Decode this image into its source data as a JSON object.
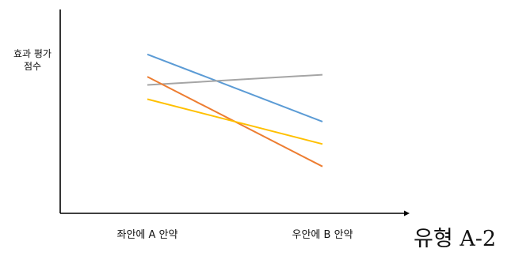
{
  "caption": "유형 A-2",
  "chart_data": {
    "type": "line",
    "ylabel": "효과 평가\n점수",
    "xlabel": "",
    "categories": [
      "좌안에 A 안약",
      "우안에 B 안약"
    ],
    "ylim": [
      0,
      100
    ],
    "grid": false,
    "series": [
      {
        "color": "#5b9bd5",
        "values": [
          78,
          45
        ]
      },
      {
        "color": "#a5a5a5",
        "values": [
          63,
          68
        ]
      },
      {
        "color": "#ed7d31",
        "values": [
          67,
          23
        ]
      },
      {
        "color": "#ffc000",
        "values": [
          56,
          34
        ]
      }
    ]
  }
}
